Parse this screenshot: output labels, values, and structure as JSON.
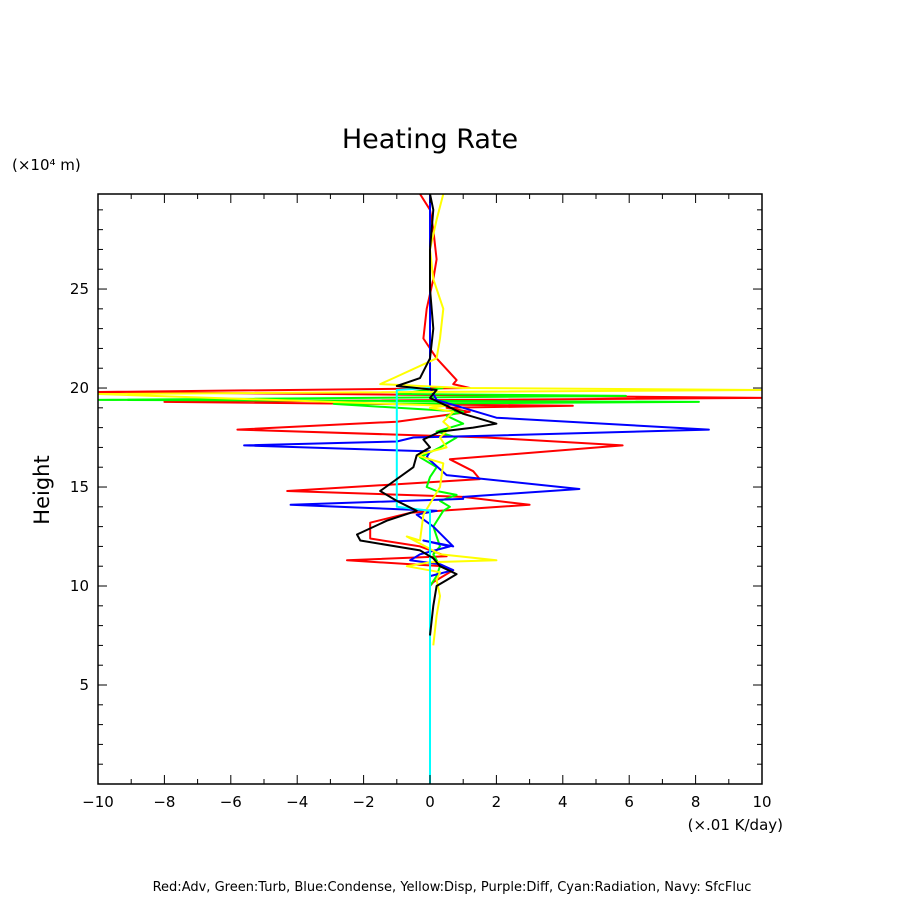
{
  "chart_data": {
    "type": "line",
    "title": "Heating Rate",
    "ylabel": "Height",
    "yunit": "(×10⁴ m)",
    "xunit": "(×.01 K/day)",
    "legend": "Red:Adv, Green:Turb, Blue:Condense, Yellow:Disp, Purple:Diff, Cyan:Radiation, Navy: SfcFluc",
    "xlim": [
      -10,
      10
    ],
    "ylim": [
      0,
      29.8
    ],
    "grid": false,
    "x_ticks": [
      -10,
      -8,
      -6,
      -4,
      -2,
      0,
      2,
      4,
      6,
      8,
      10
    ],
    "x_tick_labels": [
      "−10",
      "−8",
      "−6",
      "−4",
      "−2",
      "0",
      "2",
      "4",
      "6",
      "8",
      "10"
    ],
    "y_ticks": [
      5,
      10,
      15,
      20,
      25
    ],
    "y_tick_labels": [
      "5",
      "10",
      "15",
      "20",
      "25"
    ],
    "series": [
      {
        "color": "#ff0000",
        "points": [
          [
            0,
            0
          ],
          [
            0,
            10.0
          ],
          [
            0.1,
            10.2
          ],
          [
            0.7,
            10.8
          ],
          [
            0.4,
            11.0
          ],
          [
            -2.5,
            11.3
          ],
          [
            0.5,
            11.5
          ],
          [
            -0.3,
            12.0
          ],
          [
            -1.8,
            12.4
          ],
          [
            -1.8,
            13.2
          ],
          [
            -0.6,
            13.7
          ],
          [
            3.0,
            14.1
          ],
          [
            1.0,
            14.5
          ],
          [
            -4.3,
            14.8
          ],
          [
            1.5,
            15.4
          ],
          [
            1.3,
            15.8
          ],
          [
            0.6,
            16.4
          ],
          [
            5.8,
            17.1
          ],
          [
            1.7,
            17.5
          ],
          [
            -5.8,
            17.9
          ],
          [
            -1.0,
            18.3
          ],
          [
            1.2,
            18.8
          ],
          [
            0.5,
            19.0
          ],
          [
            4.3,
            19.1
          ],
          [
            -8.0,
            19.3
          ],
          [
            10.0,
            19.5
          ],
          [
            -10.0,
            19.8
          ],
          [
            1.2,
            20.0
          ],
          [
            0.7,
            20.2
          ],
          [
            0.8,
            20.4
          ],
          [
            0.2,
            21.5
          ],
          [
            -0.2,
            22.5
          ],
          [
            -0.1,
            24.0
          ],
          [
            0.1,
            25.5
          ],
          [
            0.2,
            26.5
          ],
          [
            0.1,
            28.0
          ],
          [
            0,
            29.0
          ],
          [
            -0.3,
            29.8
          ]
        ]
      },
      {
        "color": "#00ff00",
        "points": [
          [
            0,
            10.0
          ],
          [
            0.2,
            10.5
          ],
          [
            0.3,
            11.0
          ],
          [
            0.1,
            11.6
          ],
          [
            0.3,
            12.0
          ],
          [
            0.1,
            13.0
          ],
          [
            0.4,
            13.8
          ],
          [
            0.6,
            14.0
          ],
          [
            0.3,
            14.3
          ],
          [
            0.8,
            14.6
          ],
          [
            0.2,
            14.8
          ],
          [
            -0.1,
            15.0
          ],
          [
            0,
            15.5
          ],
          [
            0.2,
            16.0
          ],
          [
            -0.3,
            16.5
          ],
          [
            0.3,
            17.0
          ],
          [
            0.8,
            17.5
          ],
          [
            0.2,
            17.8
          ],
          [
            1.0,
            18.2
          ],
          [
            0.5,
            18.6
          ],
          [
            1.0,
            18.8
          ],
          [
            -2.9,
            19.2
          ],
          [
            8.1,
            19.3
          ],
          [
            -10.0,
            19.4
          ],
          [
            5.9,
            19.6
          ],
          [
            -1.0,
            19.7
          ],
          [
            0.4,
            20.0
          ]
        ]
      },
      {
        "color": "#0000ff",
        "points": [
          [
            0,
            0
          ],
          [
            0,
            10.5
          ],
          [
            0.7,
            10.8
          ],
          [
            0.3,
            11.1
          ],
          [
            -0.6,
            11.3
          ],
          [
            -0.3,
            11.6
          ],
          [
            0.6,
            12.0
          ],
          [
            -0.2,
            12.3
          ],
          [
            0.7,
            12.0
          ],
          [
            0.1,
            13.0
          ],
          [
            -0.4,
            13.6
          ],
          [
            0.2,
            13.8
          ],
          [
            -4.2,
            14.1
          ],
          [
            1.0,
            14.4
          ],
          [
            1.0,
            14.5
          ],
          [
            4.5,
            14.9
          ],
          [
            0.5,
            15.6
          ],
          [
            -0.1,
            16.5
          ],
          [
            0,
            16.8
          ],
          [
            -5.6,
            17.1
          ],
          [
            -1.0,
            17.3
          ],
          [
            -0.5,
            17.5
          ],
          [
            2.0,
            17.6
          ],
          [
            8.4,
            17.9
          ],
          [
            2.0,
            18.5
          ],
          [
            1.0,
            19.0
          ],
          [
            0.2,
            19.4
          ],
          [
            0,
            20.0
          ],
          [
            0,
            29.8
          ]
        ]
      },
      {
        "color": "#ffff00",
        "points": [
          [
            0.1,
            7.0
          ],
          [
            0.2,
            8.5
          ],
          [
            0.3,
            9.5
          ],
          [
            0.2,
            10.3
          ],
          [
            0.3,
            10.7
          ],
          [
            -0.7,
            11.0
          ],
          [
            0,
            11.2
          ],
          [
            2.0,
            11.3
          ],
          [
            0.3,
            11.6
          ],
          [
            -0.7,
            12.5
          ],
          [
            -0.3,
            12.3
          ],
          [
            -0.2,
            13.6
          ],
          [
            0.3,
            15.0
          ],
          [
            0.4,
            16.2
          ],
          [
            -0.4,
            16.6
          ],
          [
            0.5,
            17.0
          ],
          [
            0.3,
            17.5
          ],
          [
            0.6,
            18.0
          ],
          [
            0.4,
            18.3
          ],
          [
            0.7,
            18.8
          ],
          [
            0,
            19.0
          ],
          [
            0.5,
            19.1
          ],
          [
            -10.0,
            19.7
          ],
          [
            10.0,
            19.9
          ],
          [
            1.0,
            20.0
          ],
          [
            -1.5,
            20.2
          ],
          [
            -1.1,
            20.5
          ],
          [
            0.2,
            21.5
          ],
          [
            0.3,
            22.5
          ],
          [
            0.4,
            24.0
          ],
          [
            0.1,
            25.5
          ],
          [
            0,
            27.0
          ],
          [
            0.2,
            28.5
          ],
          [
            0.4,
            29.8
          ]
        ]
      },
      {
        "color": "#00ffff",
        "points": [
          [
            0,
            0
          ],
          [
            0,
            13.8
          ],
          [
            -1.0,
            14.0
          ],
          [
            -1.0,
            17.5
          ],
          [
            -1.0,
            19.9
          ],
          [
            0,
            20.0
          ]
        ]
      },
      {
        "color": "#000000",
        "points": [
          [
            0,
            7.5
          ],
          [
            0.1,
            9.0
          ],
          [
            0.2,
            10.0
          ],
          [
            0.5,
            10.3
          ],
          [
            0.8,
            10.6
          ],
          [
            0.3,
            11.0
          ],
          [
            0.1,
            11.4
          ],
          [
            -0.3,
            11.8
          ],
          [
            -2.1,
            12.3
          ],
          [
            -2.2,
            12.6
          ],
          [
            -1.3,
            13.3
          ],
          [
            -0.4,
            13.8
          ],
          [
            -1.0,
            14.3
          ],
          [
            -1.5,
            14.8
          ],
          [
            -0.5,
            16.0
          ],
          [
            -0.4,
            16.6
          ],
          [
            0,
            17.0
          ],
          [
            -0.2,
            17.4
          ],
          [
            0.3,
            17.8
          ],
          [
            1.3,
            18.0
          ],
          [
            2.0,
            18.2
          ],
          [
            1.0,
            18.7
          ],
          [
            0.5,
            19.1
          ],
          [
            0,
            19.5
          ],
          [
            0.2,
            19.9
          ],
          [
            -1.0,
            20.1
          ],
          [
            -0.3,
            20.5
          ],
          [
            0,
            21.5
          ],
          [
            0.1,
            23.0
          ],
          [
            0,
            25.0
          ],
          [
            0,
            27.0
          ],
          [
            0.1,
            29.0
          ],
          [
            0,
            29.8
          ]
        ]
      }
    ]
  }
}
